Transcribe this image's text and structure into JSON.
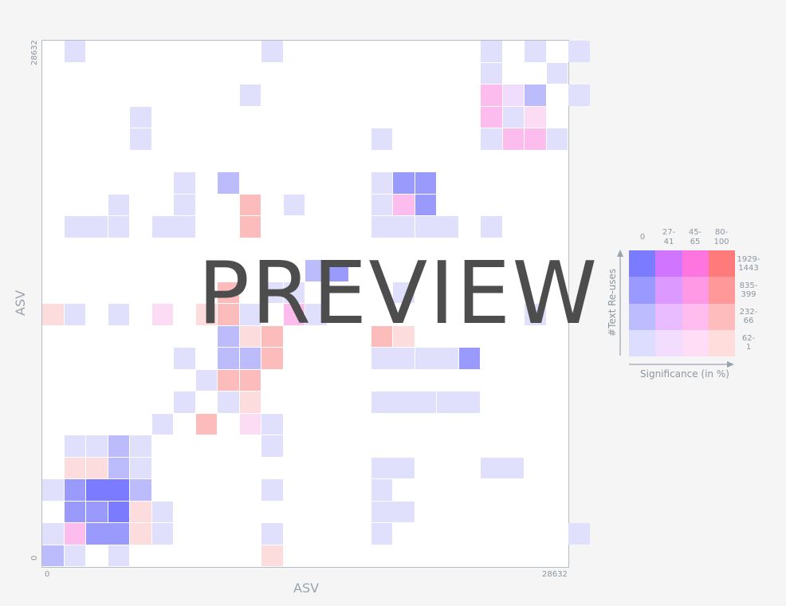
{
  "axes": {
    "x_title": "ASV",
    "y_title": "ASV",
    "x_min_label": "0",
    "x_max_label": "28632",
    "y_min_label": "0",
    "y_max_label": "28632"
  },
  "legend": {
    "x_title": "Significance (in %)",
    "y_title": "#Text Re-uses",
    "column_labels": [
      "0",
      "27-\n41",
      "45-\n65",
      "80-\n100"
    ],
    "row_labels": [
      "1929-\n1443",
      "835-\n399",
      "232-\n66",
      "62-\n1"
    ],
    "colors": [
      [
        "#7b7bff",
        "#cf75ff",
        "#ff75e0",
        "#ff7b7b"
      ],
      [
        "#9999ff",
        "#dc99ff",
        "#ff99e6",
        "#ff9999"
      ],
      [
        "#bcbcff",
        "#e8bcff",
        "#ffbcee",
        "#ffbcbc"
      ],
      [
        "#ddddff",
        "#f3ddff",
        "#ffddf7",
        "#ffdddd"
      ]
    ]
  },
  "watermark": "PREVIEW",
  "palette": {
    "b1": "#e0e0fc",
    "b2": "#bcbcfc",
    "b3": "#9a9afc",
    "b4": "#7b7bff",
    "p1": "#f0dcfc",
    "p2": "#e6bcfc",
    "m1": "#fcdcf4",
    "m2": "#fcbcee",
    "r1": "#fcdcdc",
    "r2": "#fcbcbc",
    "r3": "#fca8a8"
  },
  "heatmap_cells": [
    [
      0,
      0,
      1,
      1,
      "b2"
    ],
    [
      1,
      0,
      1,
      1,
      "b1"
    ],
    [
      3,
      0,
      1,
      1,
      "b1"
    ],
    [
      10,
      0,
      1,
      1,
      "r1"
    ],
    [
      0,
      1,
      1,
      1,
      "b1"
    ],
    [
      1,
      1,
      1,
      1,
      "m2"
    ],
    [
      2,
      1,
      2,
      1,
      "b3"
    ],
    [
      4,
      1,
      1,
      1,
      "r1"
    ],
    [
      5,
      1,
      1,
      1,
      "b1"
    ],
    [
      10,
      1,
      1,
      1,
      "b1"
    ],
    [
      15,
      1,
      1,
      1,
      "b1"
    ],
    [
      24,
      1,
      1,
      1,
      "b1"
    ],
    [
      1,
      2,
      1,
      1,
      "b3"
    ],
    [
      2,
      2,
      1,
      1,
      "b3"
    ],
    [
      3,
      2,
      1,
      1,
      "b4"
    ],
    [
      4,
      2,
      1,
      1,
      "r1"
    ],
    [
      5,
      2,
      1,
      1,
      "b1"
    ],
    [
      15,
      2,
      2,
      1,
      "b1"
    ],
    [
      0,
      3,
      1,
      1,
      "b1"
    ],
    [
      1,
      3,
      1,
      1,
      "b3"
    ],
    [
      2,
      3,
      2,
      1,
      "b4"
    ],
    [
      4,
      3,
      1,
      1,
      "b2"
    ],
    [
      10,
      3,
      1,
      1,
      "b1"
    ],
    [
      15,
      3,
      1,
      1,
      "b1"
    ],
    [
      1,
      4,
      1,
      1,
      "r1"
    ],
    [
      2,
      4,
      1,
      1,
      "r1"
    ],
    [
      3,
      4,
      1,
      1,
      "b2"
    ],
    [
      4,
      4,
      1,
      1,
      "b1"
    ],
    [
      15,
      4,
      2,
      1,
      "b1"
    ],
    [
      20,
      4,
      2,
      1,
      "b1"
    ],
    [
      1,
      5,
      1,
      1,
      "b1"
    ],
    [
      2,
      5,
      1,
      1,
      "b1"
    ],
    [
      3,
      5,
      1,
      1,
      "b2"
    ],
    [
      4,
      5,
      1,
      1,
      "b1"
    ],
    [
      10,
      5,
      1,
      1,
      "b1"
    ],
    [
      5,
      6,
      1,
      1,
      "b1"
    ],
    [
      7,
      6,
      1,
      1,
      "r2"
    ],
    [
      9,
      6,
      1,
      1,
      "m1"
    ],
    [
      10,
      6,
      1,
      1,
      "b1"
    ],
    [
      6,
      7,
      1,
      1,
      "b1"
    ],
    [
      8,
      7,
      1,
      1,
      "b1"
    ],
    [
      9,
      7,
      1,
      1,
      "r1"
    ],
    [
      15,
      7,
      3,
      1,
      "b1"
    ],
    [
      18,
      7,
      2,
      1,
      "b1"
    ],
    [
      7,
      8,
      1,
      1,
      "b1"
    ],
    [
      8,
      8,
      1,
      1,
      "r2"
    ],
    [
      9,
      8,
      1,
      1,
      "r2"
    ],
    [
      6,
      9,
      1,
      1,
      "b1"
    ],
    [
      8,
      9,
      1,
      1,
      "b2"
    ],
    [
      9,
      9,
      1,
      1,
      "b2"
    ],
    [
      10,
      9,
      1,
      1,
      "r2"
    ],
    [
      15,
      9,
      2,
      1,
      "b1"
    ],
    [
      17,
      9,
      2,
      1,
      "b1"
    ],
    [
      19,
      9,
      1,
      1,
      "b3"
    ],
    [
      8,
      10,
      1,
      1,
      "b2"
    ],
    [
      9,
      10,
      1,
      1,
      "r1"
    ],
    [
      10,
      10,
      1,
      1,
      "r2"
    ],
    [
      15,
      10,
      1,
      1,
      "r2"
    ],
    [
      16,
      10,
      1,
      1,
      "r1"
    ],
    [
      0,
      11,
      1,
      1,
      "r1"
    ],
    [
      1,
      11,
      1,
      1,
      "b1"
    ],
    [
      3,
      11,
      1,
      1,
      "b1"
    ],
    [
      5,
      11,
      1,
      1,
      "m1"
    ],
    [
      7,
      11,
      1,
      1,
      "r1"
    ],
    [
      8,
      11,
      1,
      1,
      "r2"
    ],
    [
      9,
      11,
      1,
      1,
      "b1"
    ],
    [
      11,
      11,
      1,
      1,
      "m2"
    ],
    [
      12,
      11,
      1,
      1,
      "b1"
    ],
    [
      22,
      11,
      1,
      1,
      "b1"
    ],
    [
      8,
      12,
      1,
      1,
      "r2"
    ],
    [
      10,
      12,
      1,
      1,
      "b1"
    ],
    [
      11,
      12,
      1,
      1,
      "b1"
    ],
    [
      16,
      12,
      1,
      1,
      "b1"
    ],
    [
      12,
      13,
      1,
      1,
      "b2"
    ],
    [
      13,
      13,
      1,
      1,
      "b3"
    ],
    [
      1,
      15,
      2,
      1,
      "b1"
    ],
    [
      3,
      15,
      1,
      1,
      "b1"
    ],
    [
      5,
      15,
      2,
      1,
      "b1"
    ],
    [
      9,
      15,
      1,
      1,
      "r2"
    ],
    [
      15,
      15,
      2,
      1,
      "b1"
    ],
    [
      17,
      15,
      2,
      1,
      "b1"
    ],
    [
      20,
      15,
      1,
      1,
      "b1"
    ],
    [
      3,
      16,
      1,
      1,
      "b1"
    ],
    [
      6,
      16,
      1,
      1,
      "b1"
    ],
    [
      9,
      16,
      1,
      1,
      "r2"
    ],
    [
      11,
      16,
      1,
      1,
      "b1"
    ],
    [
      15,
      16,
      1,
      1,
      "b1"
    ],
    [
      16,
      16,
      1,
      1,
      "m2"
    ],
    [
      17,
      16,
      1,
      1,
      "b3"
    ],
    [
      6,
      17,
      1,
      1,
      "b1"
    ],
    [
      8,
      17,
      1,
      1,
      "b2"
    ],
    [
      15,
      17,
      1,
      1,
      "b1"
    ],
    [
      16,
      17,
      1,
      1,
      "b3"
    ],
    [
      17,
      17,
      1,
      1,
      "b3"
    ],
    [
      4,
      19,
      1,
      1,
      "b1"
    ],
    [
      15,
      19,
      1,
      1,
      "b1"
    ],
    [
      20,
      19,
      1,
      1,
      "b1"
    ],
    [
      21,
      19,
      1,
      1,
      "m2"
    ],
    [
      22,
      19,
      1,
      1,
      "m2"
    ],
    [
      23,
      19,
      1,
      1,
      "b1"
    ],
    [
      4,
      20,
      1,
      1,
      "b1"
    ],
    [
      20,
      20,
      1,
      1,
      "m2"
    ],
    [
      21,
      20,
      1,
      1,
      "b1"
    ],
    [
      22,
      20,
      1,
      1,
      "m1"
    ],
    [
      9,
      21,
      1,
      1,
      "b1"
    ],
    [
      20,
      21,
      1,
      1,
      "m2"
    ],
    [
      21,
      21,
      1,
      1,
      "p1"
    ],
    [
      22,
      21,
      1,
      1,
      "b2"
    ],
    [
      24,
      21,
      1,
      1,
      "b1"
    ],
    [
      20,
      22,
      1,
      1,
      "b1"
    ],
    [
      23,
      22,
      1,
      1,
      "b1"
    ],
    [
      1,
      23,
      1,
      1,
      "b1"
    ],
    [
      10,
      23,
      1,
      1,
      "b1"
    ],
    [
      20,
      23,
      1,
      1,
      "b1"
    ],
    [
      22,
      23,
      1,
      1,
      "b1"
    ],
    [
      24,
      23,
      1,
      1,
      "b1"
    ]
  ]
}
